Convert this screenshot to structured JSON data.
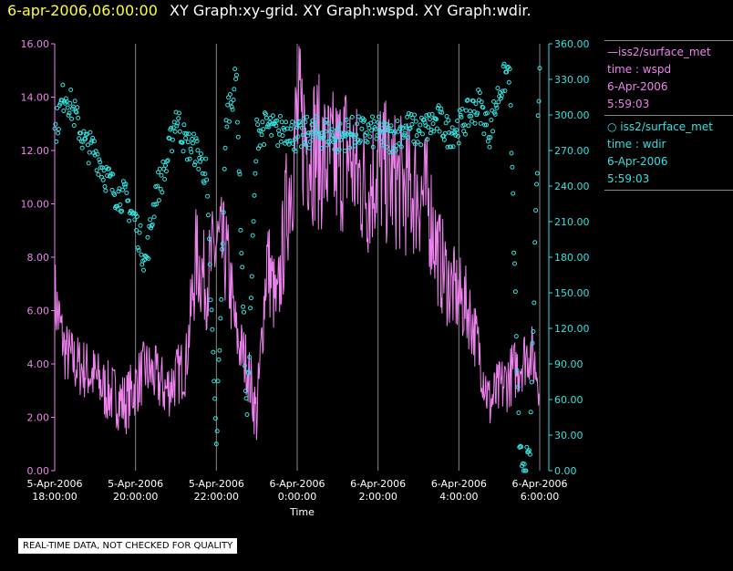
{
  "header": {
    "date": "6-apr-2006,06:00:00",
    "graphs": "XY Graph:xy-grid.  XY Graph:wspd.  XY Graph:wdir."
  },
  "legend": [
    {
      "name": "iss2/surface_met",
      "line1": "time : wspd",
      "line2": "6-Apr-2006",
      "line3": "5:59:03"
    },
    {
      "name": "iss2/surface_met",
      "line1": "time : wdir",
      "line2": "6-Apr-2006",
      "line3": "5:59:03"
    }
  ],
  "disclaimer": "REAL-TIME DATA, NOT CHECKED FOR QUALITY",
  "colors": {
    "wspd": "#ee82ee",
    "wdir": "#33e0e0",
    "grid": "#888888",
    "background": "#000000"
  },
  "chart_data": {
    "type": "line",
    "xlabel": "Time",
    "x_ticks": [
      {
        "date": "5-Apr-2006",
        "time": "18:00:00"
      },
      {
        "date": "5-Apr-2006",
        "time": "20:00:00"
      },
      {
        "date": "5-Apr-2006",
        "time": "22:00:00"
      },
      {
        "date": "6-Apr-2006",
        "time": "0:00:00"
      },
      {
        "date": "6-Apr-2006",
        "time": "2:00:00"
      },
      {
        "date": "6-Apr-2006",
        "time": "4:00:00"
      },
      {
        "date": "6-Apr-2006",
        "time": "6:00:00"
      }
    ],
    "x_range": [
      "5-Apr-2006 18:00:00",
      "6-Apr-2006 6:00:00"
    ],
    "y_left": {
      "label": "wspd",
      "ylim": [
        0,
        16
      ],
      "ticks": [
        "0.00",
        "2.00",
        "4.00",
        "6.00",
        "8.00",
        "10.00",
        "12.00",
        "14.00",
        "16.00"
      ]
    },
    "y_right": {
      "label": "wdir",
      "ylim": [
        0,
        360
      ],
      "ticks": [
        "0.00",
        "30.00",
        "60.00",
        "90.00",
        "120.00",
        "150.00",
        "180.00",
        "210.00",
        "240.00",
        "270.00",
        "300.00",
        "330.00",
        "360.00"
      ]
    },
    "grid": true,
    "series": [
      {
        "name": "iss2/surface_met",
        "axis": "left",
        "style": "line",
        "x_hours": [
          0,
          0.25,
          0.5,
          0.75,
          1,
          1.25,
          1.5,
          1.75,
          2,
          2.25,
          2.5,
          2.75,
          3,
          3.25,
          3.5,
          3.75,
          4,
          4.25,
          4.5,
          4.75,
          5,
          5.25,
          5.5,
          5.75,
          6,
          6.25,
          6.5,
          6.75,
          7,
          7.25,
          7.5,
          7.75,
          8,
          8.25,
          8.5,
          8.75,
          9,
          9.25,
          9.5,
          9.75,
          10,
          10.25,
          10.5,
          10.75,
          11,
          11.25,
          11.5,
          11.75,
          12
        ],
        "values": [
          6.5,
          4.5,
          4.0,
          3.8,
          3.5,
          3.0,
          2.8,
          2.5,
          3.2,
          3.8,
          3.5,
          3.0,
          3.5,
          4.0,
          8.0,
          7.0,
          8.5,
          8.0,
          5.0,
          4.0,
          2.0,
          8.0,
          6.0,
          10.0,
          13.0,
          12.5,
          12.0,
          11.5,
          11.5,
          12.0,
          11.0,
          10.5,
          11.5,
          11.0,
          10.8,
          10.5,
          10.5,
          10.0,
          8.0,
          7.0,
          6.5,
          6.0,
          4.5,
          2.5,
          3.0,
          3.5,
          4.0,
          4.5,
          3.5
        ]
      },
      {
        "name": "iss2/surface_met",
        "axis": "right",
        "style": "points",
        "x_hours": [
          0,
          0.25,
          0.5,
          0.75,
          1,
          1.25,
          1.5,
          1.75,
          2,
          2.25,
          2.5,
          2.75,
          3,
          3.25,
          3.5,
          3.75,
          4,
          4.25,
          4.5,
          4.75,
          5,
          5.25,
          5.5,
          5.75,
          6,
          6.25,
          6.5,
          6.75,
          7,
          7.25,
          7.5,
          7.75,
          8,
          8.25,
          8.5,
          8.75,
          9,
          9.25,
          9.5,
          9.75,
          10,
          10.25,
          10.5,
          10.75,
          11,
          11.25,
          11.5,
          11.75,
          12
        ],
        "values": [
          285,
          320,
          300,
          275,
          270,
          250,
          235,
          230,
          210,
          175,
          235,
          255,
          300,
          275,
          270,
          250,
          20,
          300,
          330,
          40,
          285,
          290,
          285,
          290,
          280,
          285,
          285,
          285,
          280,
          285,
          285,
          285,
          285,
          280,
          285,
          290,
          285,
          290,
          295,
          285,
          290,
          300,
          310,
          285,
          320,
          340,
          10,
          5,
          340
        ]
      }
    ]
  }
}
